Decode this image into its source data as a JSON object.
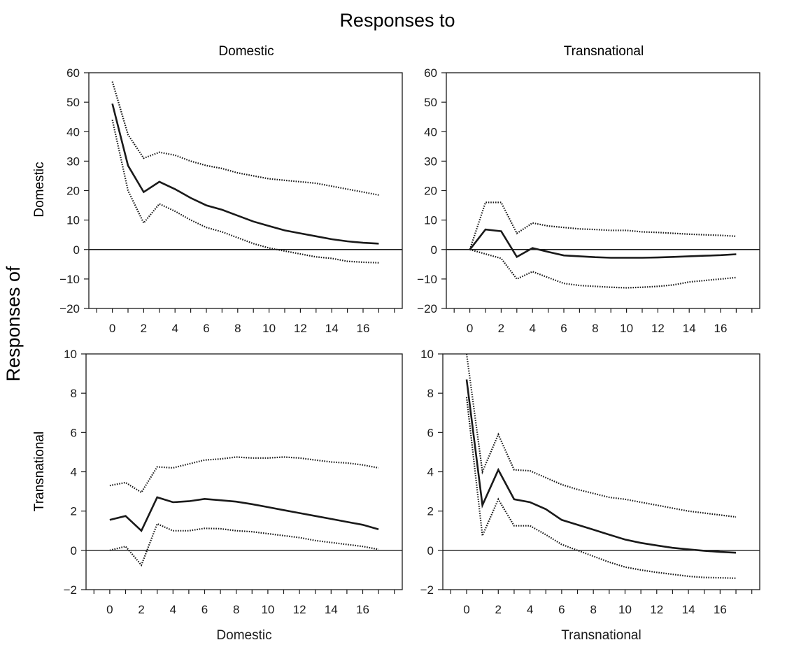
{
  "figure": {
    "title": "Responses to",
    "side_label": "Responses of",
    "col_labels": [
      "Domestic",
      "Transnational"
    ],
    "row_labels": [
      "Domestic",
      "Transnational"
    ],
    "bottom_labels": [
      "Domestic",
      "Transnational"
    ]
  },
  "chart_data": [
    {
      "type": "line",
      "response_of": "Domestic",
      "response_to": "Domestic",
      "xlabel": "",
      "ylabel": "Domestic",
      "xlim": [
        -1.5,
        18.5
      ],
      "ylim": [
        -20,
        60
      ],
      "xticks": [
        0,
        2,
        4,
        6,
        8,
        10,
        12,
        14,
        16
      ],
      "yticks": [
        -20,
        -10,
        0,
        10,
        20,
        30,
        40,
        50,
        60
      ],
      "x": [
        0,
        1,
        2,
        3,
        4,
        5,
        6,
        7,
        8,
        9,
        10,
        11,
        12,
        13,
        14,
        15,
        16,
        17
      ],
      "series": [
        {
          "style": "solid",
          "values": [
            49.5,
            28.5,
            19.5,
            23,
            20.5,
            17.5,
            15,
            13.5,
            11.5,
            9.5,
            8,
            6.5,
            5.5,
            4.5,
            3.5,
            2.8,
            2.3,
            2
          ]
        },
        {
          "style": "dotted",
          "values": [
            57,
            39,
            31,
            33,
            32,
            30,
            28.5,
            27.5,
            26,
            25,
            24,
            23.5,
            23,
            22.5,
            21.5,
            20.5,
            19.5,
            18.5
          ]
        },
        {
          "style": "dotted",
          "values": [
            44,
            20,
            9,
            15.5,
            13,
            10,
            7.5,
            6,
            4,
            2,
            0.5,
            -0.5,
            -1.5,
            -2.5,
            -3,
            -4,
            -4.3,
            -4.5
          ]
        }
      ]
    },
    {
      "type": "line",
      "response_of": "Domestic",
      "response_to": "Transnational",
      "xlabel": "",
      "ylabel": "",
      "xlim": [
        -1.5,
        18.5
      ],
      "ylim": [
        -20,
        60
      ],
      "xticks": [
        0,
        2,
        4,
        6,
        8,
        10,
        12,
        14,
        16
      ],
      "yticks": [
        -20,
        -10,
        0,
        10,
        20,
        30,
        40,
        50,
        60
      ],
      "x": [
        0,
        1,
        2,
        3,
        4,
        5,
        6,
        7,
        8,
        9,
        10,
        11,
        12,
        13,
        14,
        15,
        16,
        17
      ],
      "series": [
        {
          "style": "solid",
          "values": [
            0,
            6.8,
            6.2,
            -2.5,
            0.5,
            -0.8,
            -2,
            -2.3,
            -2.6,
            -2.8,
            -2.8,
            -2.8,
            -2.7,
            -2.5,
            -2.3,
            -2.1,
            -1.9,
            -1.6
          ]
        },
        {
          "style": "dotted",
          "values": [
            0,
            16,
            16,
            5.5,
            9,
            8,
            7.5,
            7,
            6.8,
            6.5,
            6.5,
            6,
            5.8,
            5.5,
            5.2,
            5,
            4.8,
            4.5
          ]
        },
        {
          "style": "dotted",
          "values": [
            0,
            -1.5,
            -3,
            -10,
            -7.5,
            -9.5,
            -11.5,
            -12.2,
            -12.5,
            -12.8,
            -13,
            -12.8,
            -12.5,
            -12,
            -11,
            -10.5,
            -10,
            -9.5
          ]
        }
      ]
    },
    {
      "type": "line",
      "response_of": "Transnational",
      "response_to": "Domestic",
      "xlabel": "Domestic",
      "ylabel": "Transnational",
      "xlim": [
        -1.5,
        18.5
      ],
      "ylim": [
        -2,
        10
      ],
      "xticks": [
        0,
        2,
        4,
        6,
        8,
        10,
        12,
        14,
        16
      ],
      "yticks": [
        -2,
        0,
        2,
        4,
        6,
        8,
        10
      ],
      "x": [
        0,
        1,
        2,
        3,
        4,
        5,
        6,
        7,
        8,
        9,
        10,
        11,
        12,
        13,
        14,
        15,
        16,
        17
      ],
      "series": [
        {
          "style": "solid",
          "values": [
            1.55,
            1.75,
            1.0,
            2.7,
            2.45,
            2.5,
            2.62,
            2.55,
            2.48,
            2.35,
            2.2,
            2.05,
            1.9,
            1.75,
            1.6,
            1.45,
            1.3,
            1.07
          ]
        },
        {
          "style": "dotted",
          "values": [
            3.3,
            3.45,
            2.95,
            4.25,
            4.2,
            4.4,
            4.6,
            4.65,
            4.75,
            4.7,
            4.7,
            4.75,
            4.7,
            4.6,
            4.5,
            4.45,
            4.35,
            4.2
          ]
        },
        {
          "style": "dotted",
          "values": [
            0,
            0.2,
            -0.75,
            1.35,
            1.0,
            1.0,
            1.12,
            1.1,
            1.0,
            0.95,
            0.85,
            0.75,
            0.65,
            0.5,
            0.4,
            0.3,
            0.2,
            0.05
          ]
        }
      ]
    },
    {
      "type": "line",
      "response_of": "Transnational",
      "response_to": "Transnational",
      "xlabel": "Transnational",
      "ylabel": "",
      "xlim": [
        -1.5,
        18.5
      ],
      "ylim": [
        -2,
        10
      ],
      "xticks": [
        0,
        2,
        4,
        6,
        8,
        10,
        12,
        14,
        16
      ],
      "yticks": [
        -2,
        0,
        2,
        4,
        6,
        8,
        10
      ],
      "x": [
        0,
        1,
        2,
        3,
        4,
        5,
        6,
        7,
        8,
        9,
        10,
        11,
        12,
        13,
        14,
        15,
        16,
        17
      ],
      "series": [
        {
          "style": "solid",
          "values": [
            8.7,
            2.3,
            4.1,
            2.6,
            2.45,
            2.1,
            1.55,
            1.3,
            1.05,
            0.8,
            0.55,
            0.38,
            0.25,
            0.13,
            0.05,
            -0.02,
            -0.08,
            -0.12
          ]
        },
        {
          "style": "dotted",
          "values": [
            10.0,
            4.0,
            5.9,
            4.1,
            4.05,
            3.7,
            3.35,
            3.1,
            2.9,
            2.7,
            2.6,
            2.45,
            2.3,
            2.15,
            2.0,
            1.9,
            1.8,
            1.7
          ]
        },
        {
          "style": "dotted",
          "values": [
            7.8,
            0.75,
            2.6,
            1.25,
            1.25,
            0.8,
            0.3,
            0.0,
            -0.3,
            -0.6,
            -0.85,
            -1.0,
            -1.12,
            -1.22,
            -1.32,
            -1.38,
            -1.4,
            -1.42
          ]
        }
      ]
    }
  ]
}
